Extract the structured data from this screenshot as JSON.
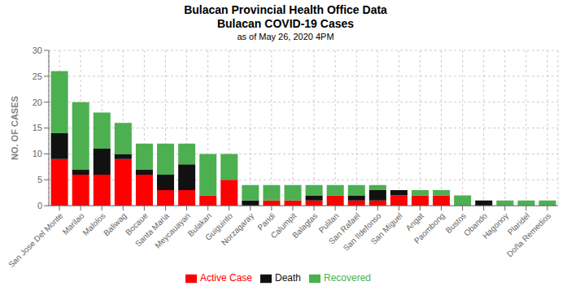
{
  "chart_data": {
    "type": "bar",
    "title": "Bulacan Provincial Health Office Data\nBulacan COVID-19 Cases",
    "subtitle": "as of May 26, 2020 4PM",
    "ylabel": "NO. OF CASES",
    "categories": [
      "San Jose Del Monte",
      "Marilao",
      "Malolos",
      "Baliwag",
      "Bocaue",
      "Santa Maria",
      "Meycauayan",
      "Bulakan",
      "Guiguinto",
      "Norzagaray",
      "Pandi",
      "Calumpit",
      "Balagtas",
      "Pulilan",
      "San Rafael",
      "San Ildefonso",
      "San Miguel",
      "Angat",
      "Paombong",
      "Bustos",
      "Obando",
      "Hagonoy",
      "Plaridel",
      "Doña Remedios"
    ],
    "series": [
      {
        "name": "Active Case",
        "color": "#ff0000",
        "values": [
          9,
          6,
          6,
          9,
          6,
          3,
          3,
          2,
          5,
          0,
          1,
          1,
          1,
          2,
          1,
          1,
          2,
          2,
          2,
          0,
          0,
          0,
          0,
          0
        ]
      },
      {
        "name": "Death",
        "color": "#111111",
        "values": [
          5,
          1,
          5,
          1,
          1,
          3,
          5,
          0,
          0,
          1,
          0,
          0,
          1,
          0,
          1,
          2,
          1,
          0,
          0,
          0,
          1,
          0,
          0,
          0
        ]
      },
      {
        "name": "Recovered",
        "color": "#4caf50",
        "values": [
          12,
          13,
          7,
          6,
          5,
          6,
          4,
          8,
          5,
          3,
          3,
          3,
          2,
          2,
          2,
          1,
          0,
          1,
          1,
          2,
          0,
          1,
          1,
          1
        ]
      }
    ],
    "ylim": [
      0,
      30
    ],
    "yticks": [
      0,
      5,
      10,
      15,
      20,
      25,
      30
    ],
    "grid": true,
    "stacked": true,
    "legend": "bottom"
  }
}
